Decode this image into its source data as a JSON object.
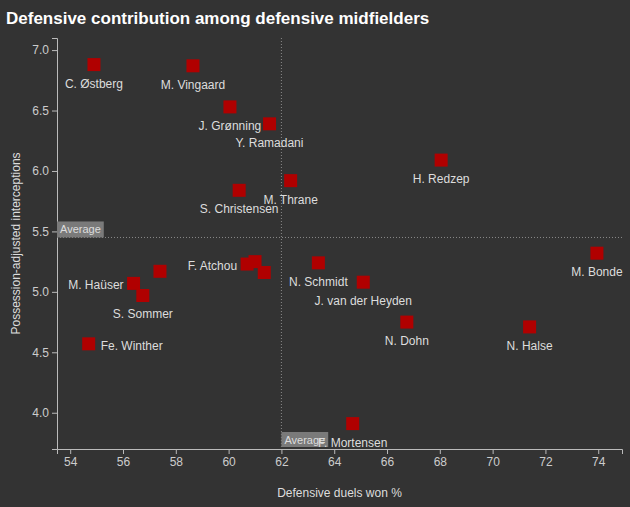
{
  "chart_data": {
    "type": "scatter",
    "title": "Defensive contribution among defensive midfielders",
    "x_label": "Defensive duels won %",
    "y_label": "Possession-adjusted interceptions",
    "x": [
      54.9,
      58.65,
      60.05,
      61.55,
      68.05,
      62.35,
      60.4,
      73.95,
      63.4,
      60.7,
      61.0,
      61.35,
      65.1,
      56.4,
      57.4,
      56.75,
      66.75,
      71.4,
      54.7,
      64.7
    ],
    "values": [
      6.88,
      6.87,
      6.53,
      6.39,
      6.09,
      5.92,
      5.84,
      5.32,
      5.24,
      5.23,
      5.25,
      5.16,
      5.08,
      5.07,
      5.17,
      4.97,
      4.75,
      4.71,
      4.57,
      3.91
    ],
    "labels": [
      "C. Østberg",
      "M. Vingaard",
      "J. Grønning",
      "Y. Ramadani",
      "H. Redzep",
      "M. Thrane",
      "S. Christensen",
      "M. Bonde",
      "N. Schmidt",
      "F. Atchou",
      null,
      null,
      "J. van der Heyden",
      "M. Haüser",
      null,
      "S. Sommer",
      "N. Dohn",
      "N. Halse",
      "Fe. Winther",
      "F. Mortensen"
    ],
    "color": "#b00000",
    "marker": "square",
    "xlim": [
      53.5,
      74.9
    ],
    "ylim": [
      3.7,
      7.1
    ],
    "xticks": [
      54,
      56,
      58,
      60,
      62,
      64,
      66,
      68,
      70,
      72,
      74
    ],
    "yticks": [
      {
        "value": 4,
        "label": "4.0"
      },
      4.5,
      {
        "value": 5,
        "label": "5.0"
      },
      5.5,
      {
        "value": 6,
        "label": "6.0"
      },
      6.5,
      {
        "value": 7,
        "label": "7.0"
      }
    ],
    "x_average": {
      "value": 62.0,
      "label": "Average"
    },
    "y_average": {
      "value": 5.45,
      "label": "Average"
    },
    "grid": false
  }
}
